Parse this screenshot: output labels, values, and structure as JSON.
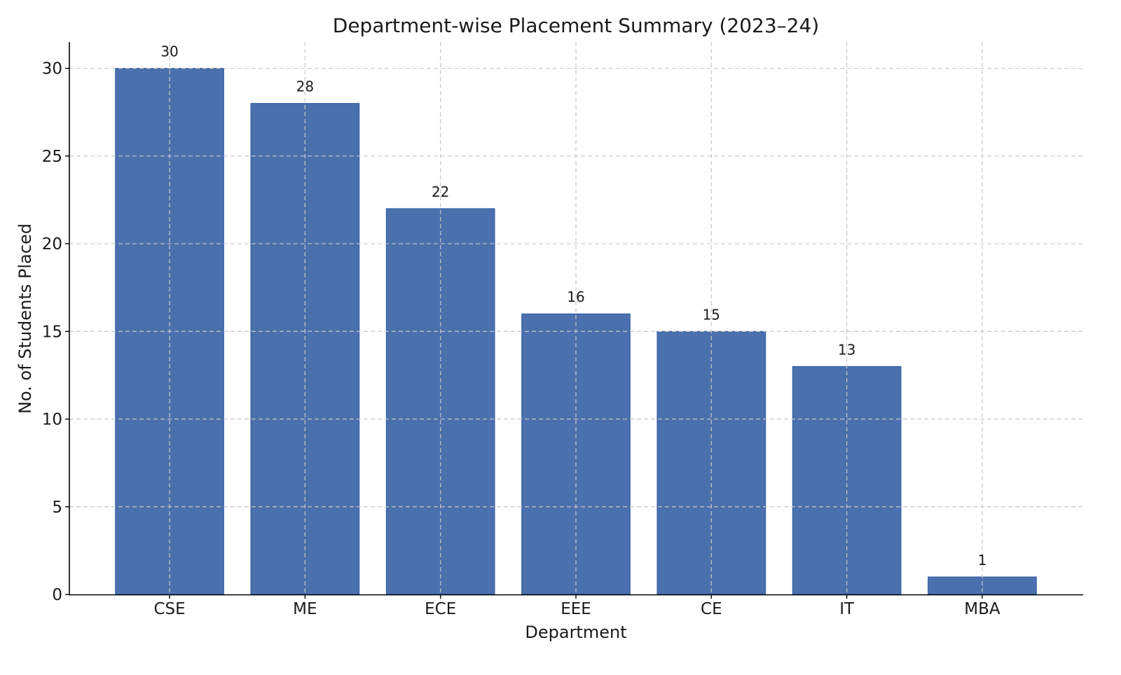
{
  "chart_data": {
    "type": "bar",
    "title": "Department-wise Placement Summary (2023–24)",
    "xlabel": "Department",
    "ylabel": "No. of Students Placed",
    "categories": [
      "CSE",
      "ME",
      "ECE",
      "EEE",
      "CE",
      "IT",
      "MBA"
    ],
    "values": [
      30,
      28,
      22,
      16,
      15,
      13,
      1
    ],
    "data_labels": [
      "30",
      "28",
      "22",
      "16",
      "15",
      "13",
      "1"
    ],
    "ylim": [
      0,
      31.5
    ],
    "yticks": [
      0,
      5,
      10,
      15,
      20,
      25,
      30
    ],
    "ytick_labels": [
      "0",
      "5",
      "10",
      "15",
      "20",
      "25",
      "30"
    ],
    "grid": true,
    "bar_color": "#4a70ad",
    "bar_edge_color": "#2b5ba8"
  }
}
